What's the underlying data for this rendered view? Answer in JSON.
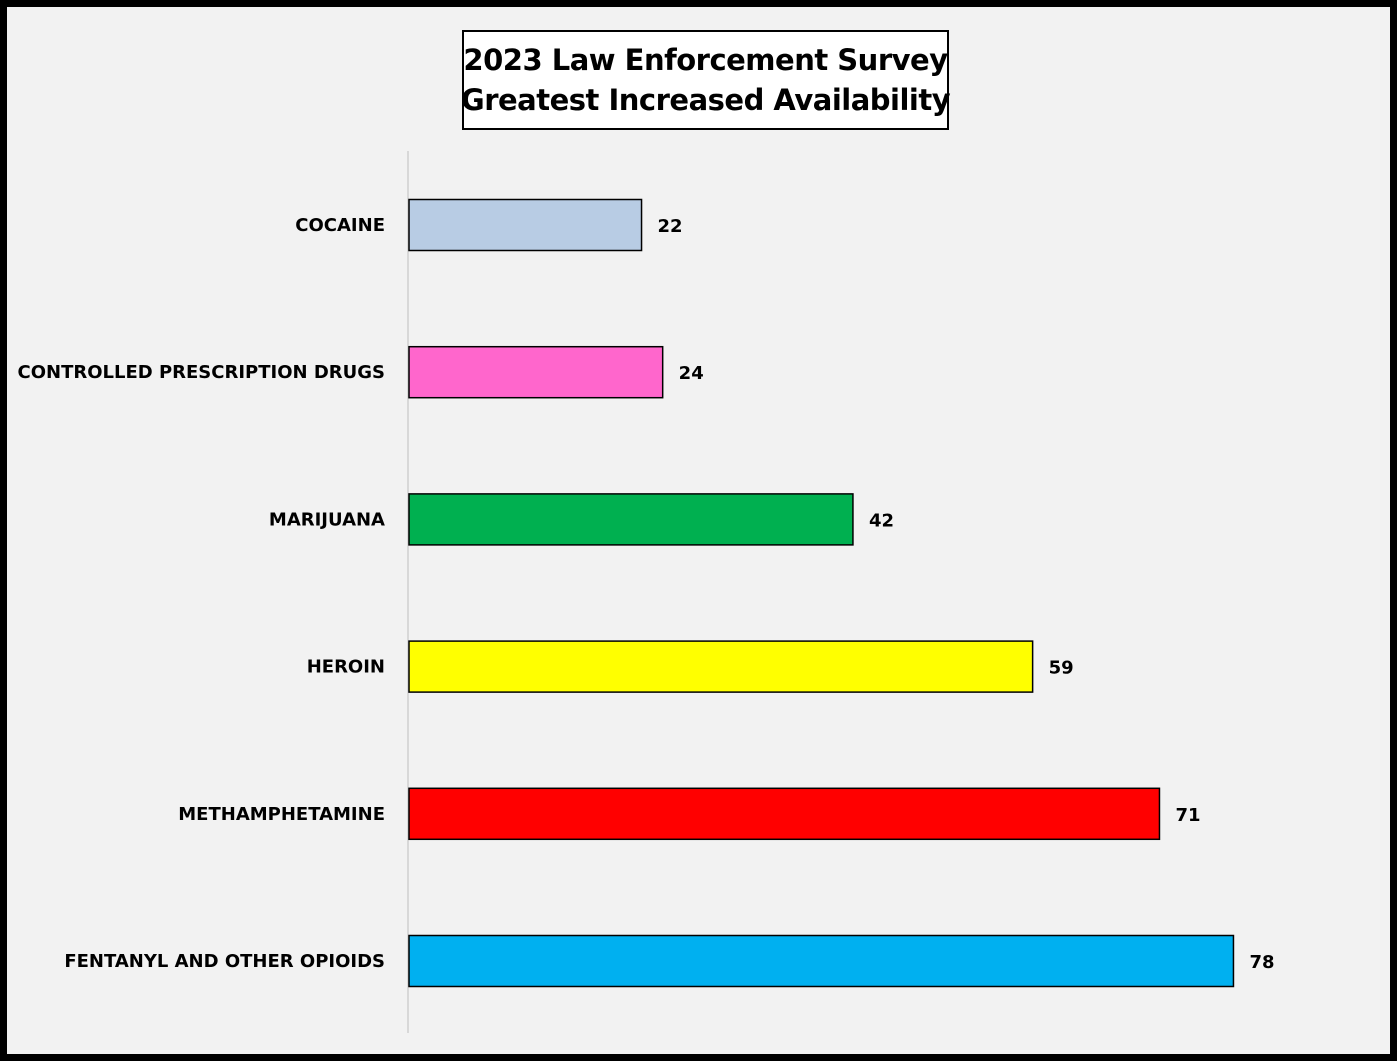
{
  "chart_data": {
    "type": "bar",
    "orientation": "horizontal",
    "title": [
      "2023 Law Enforcement Survey",
      "Greatest Increased Availability"
    ],
    "categories": [
      "COCAINE",
      "CONTROLLED PRESCRIPTION DRUGS",
      "MARIJUANA",
      "HEROIN",
      "METHAMPHETAMINE",
      "FENTANYL AND OTHER OPIOIDS"
    ],
    "values": [
      22,
      24,
      42,
      59,
      71,
      78
    ],
    "colors": [
      "#b8cce4",
      "#ff66cc",
      "#00b050",
      "#ffff00",
      "#ff0000",
      "#00b0f0"
    ],
    "xlabel": "",
    "ylabel": "",
    "xlim": [
      0,
      80
    ],
    "grid": false,
    "legend": "none",
    "data_labels": true
  }
}
